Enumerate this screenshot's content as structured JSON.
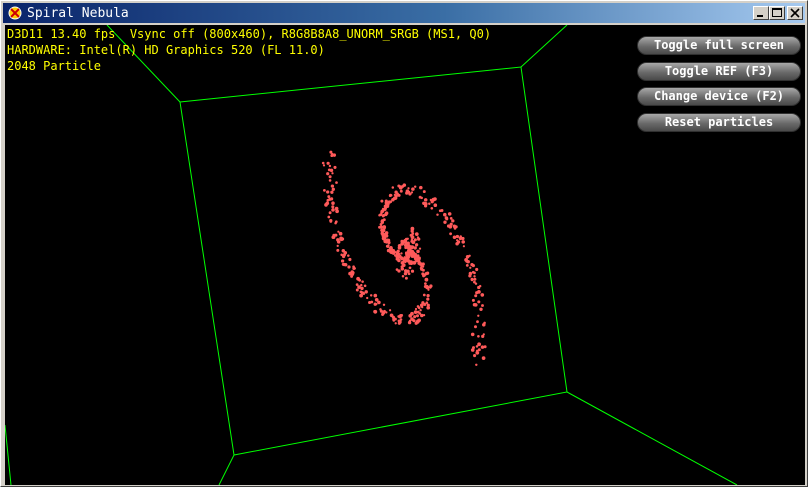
{
  "window": {
    "title": "Spiral Nebula",
    "controls": [
      "minimize-icon",
      "maximize-icon",
      "close-icon"
    ]
  },
  "hud": {
    "line1": "D3D11 13.40 fps  Vsync off (800x460), R8G8B8A8_UNORM_SRGB (MS1, Q0)",
    "line2": "HARDWARE: Intel(R) HD Graphics 520 (FL 11.0)",
    "line3": "2048 Particle"
  },
  "buttons": {
    "toggle_full_screen": "Toggle full screen",
    "toggle_ref": "Toggle REF (F3)",
    "change_device": "Change device (F2)",
    "reset_particles": "Reset particles"
  },
  "colors": {
    "hud_text": "#ffff00",
    "wireframe": "#00ff00",
    "particle": "#ff5a5a",
    "background": "#000000"
  }
}
